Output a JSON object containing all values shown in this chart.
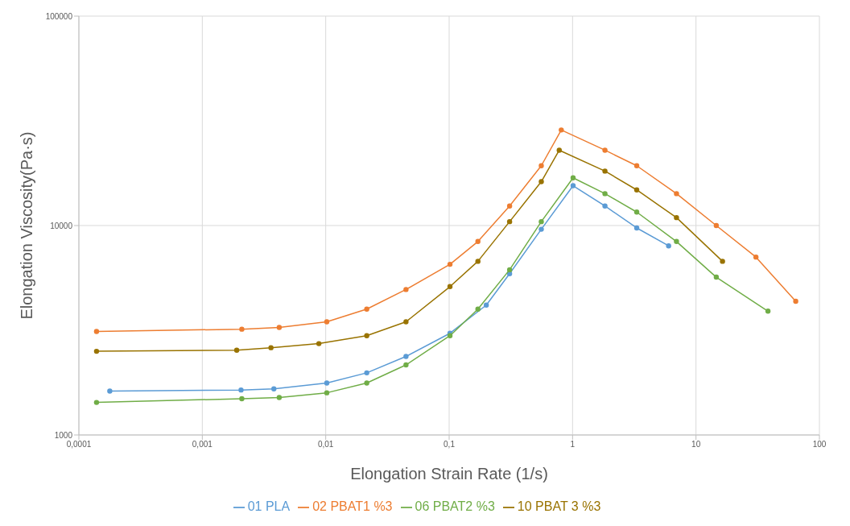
{
  "chart_data": {
    "type": "line",
    "xlabel": "Elongation Strain Rate (1/s)",
    "ylabel": "Elongation Viscosity(Pa·s)",
    "log": "xy",
    "grid": true,
    "legend": "bottom",
    "marker": "circle",
    "xlim": [
      0.0001,
      100
    ],
    "xticks": [
      {
        "value": 0.0001,
        "label": "0,0001"
      },
      {
        "value": 0.001,
        "label": "0,001"
      },
      {
        "value": 0.01,
        "label": "0,01"
      },
      {
        "value": 0.1,
        "label": "0,1"
      },
      1,
      10,
      100
    ],
    "ylim": [
      1000,
      100000
    ],
    "yticks": [
      1000,
      10000,
      100000
    ],
    "series": [
      {
        "name": "01 PLA",
        "color": "#5b9bd5",
        "x": [
          0.000178,
          0.00206,
          0.0038,
          0.0102,
          0.0215,
          0.0447,
          0.1016,
          0.2,
          0.309,
          0.558,
          1.01,
          1.83,
          3.31,
          6.0
        ],
        "values": [
          1620,
          1640,
          1660,
          1770,
          1980,
          2370,
          3060,
          4170,
          5890,
          9600,
          15500,
          12400,
          9740,
          8000
        ]
      },
      {
        "name": "02 PBAT1 %3",
        "color": "#ed7d31",
        "x": [
          0.000139,
          0.00209,
          0.0042,
          0.0102,
          0.0215,
          0.0447,
          0.1016,
          0.171,
          0.309,
          0.558,
          0.81,
          1.83,
          3.31,
          6.95,
          14.6,
          30.6,
          64.3
        ],
        "values": [
          3120,
          3200,
          3260,
          3470,
          3990,
          4950,
          6530,
          8390,
          12400,
          19300,
          28600,
          22900,
          19300,
          14200,
          10000,
          7070,
          4350
        ]
      },
      {
        "name": "06 PBAT2 %3",
        "color": "#70ad47",
        "x": [
          0.000139,
          0.00209,
          0.0042,
          0.0102,
          0.0215,
          0.0447,
          0.1016,
          0.171,
          0.309,
          0.558,
          1.01,
          1.83,
          3.31,
          6.95,
          14.6,
          38.3
        ],
        "values": [
          1430,
          1490,
          1510,
          1590,
          1770,
          2160,
          2980,
          3990,
          6150,
          10440,
          16900,
          14200,
          11600,
          8390,
          5670,
          3900
        ]
      },
      {
        "name": "10 PBAT 3 %3",
        "color": "#997300",
        "x": [
          0.000139,
          0.0019,
          0.0036,
          0.0088,
          0.0215,
          0.0447,
          0.1016,
          0.171,
          0.309,
          0.558,
          0.78,
          1.83,
          3.31,
          6.95,
          16.4
        ],
        "values": [
          2510,
          2540,
          2610,
          2730,
          2980,
          3470,
          5110,
          6750,
          10440,
          16200,
          22900,
          18200,
          14800,
          10910,
          6750
        ]
      }
    ]
  }
}
